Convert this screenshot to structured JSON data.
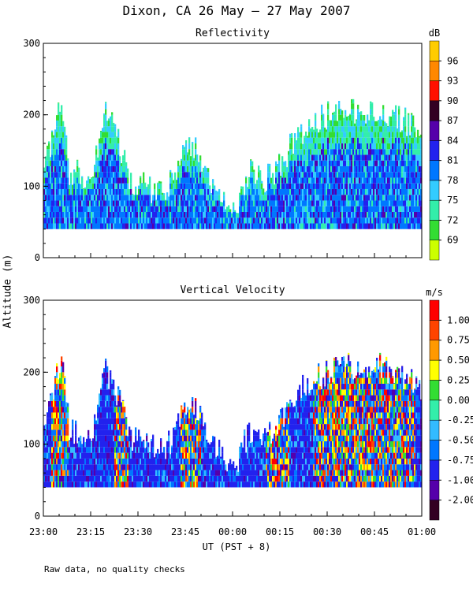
{
  "title": "Dixon, CA 26 May — 27 May 2007",
  "ylabel": "Altitude (m)",
  "xlabel": "UT  (PST + 8)",
  "footnote": "Raw data, no quality checks",
  "chart_data": [
    {
      "type": "heatmap",
      "title": "Reflectivity",
      "colorbar_unit": "dB",
      "colorbar_ticks": [
        "69",
        "72",
        "75",
        "78",
        "81",
        "84",
        "87",
        "90",
        "93",
        "96"
      ],
      "colorbar_colors": [
        "#ccff00",
        "#33dd33",
        "#33eeaa",
        "#33ccff",
        "#0077ff",
        "#2222ee",
        "#5500aa",
        "#330022",
        "#ff1100",
        "#ff8800",
        "#ffcc00"
      ],
      "x_ticks": [
        "23:00",
        "23:15",
        "23:30",
        "23:45",
        "00:00",
        "00:15",
        "00:30",
        "00:45",
        "01:00"
      ],
      "y_ticks": [
        "0",
        "100",
        "200",
        "300"
      ],
      "ylim": [
        0,
        300
      ],
      "xlim_minutes": [
        0,
        120
      ],
      "data_base_altitude": 40,
      "profiles": [
        {
          "t": 0,
          "top": 120
        },
        {
          "t": 2,
          "top": 160
        },
        {
          "t": 4,
          "top": 200
        },
        {
          "t": 5.5,
          "top": 215
        },
        {
          "t": 8,
          "top": 120
        },
        {
          "t": 11,
          "top": 120
        },
        {
          "t": 15,
          "top": 110
        },
        {
          "t": 19,
          "top": 210
        },
        {
          "t": 22,
          "top": 180
        },
        {
          "t": 24,
          "top": 160
        },
        {
          "t": 27,
          "top": 110
        },
        {
          "t": 32,
          "top": 100
        },
        {
          "t": 37,
          "top": 90
        },
        {
          "t": 41,
          "top": 110
        },
        {
          "t": 45,
          "top": 160
        },
        {
          "t": 49,
          "top": 150
        },
        {
          "t": 53,
          "top": 100
        },
        {
          "t": 57,
          "top": 80
        },
        {
          "t": 60,
          "top": 60
        },
        {
          "t": 65,
          "top": 120
        },
        {
          "t": 70,
          "top": 110
        },
        {
          "t": 75,
          "top": 130
        },
        {
          "t": 80,
          "top": 170
        },
        {
          "t": 85,
          "top": 190
        },
        {
          "t": 90,
          "top": 200
        },
        {
          "t": 95,
          "top": 210
        },
        {
          "t": 100,
          "top": 200
        },
        {
          "t": 105,
          "top": 210
        },
        {
          "t": 110,
          "top": 200
        },
        {
          "t": 115,
          "top": 190
        },
        {
          "t": 120,
          "top": 180
        }
      ]
    },
    {
      "type": "heatmap",
      "title": "Vertical Velocity",
      "colorbar_unit": "m/s",
      "colorbar_ticks": [
        "-2.00",
        "-1.00",
        "-0.75",
        "-0.50",
        "-0.25",
        "0.00",
        "0.25",
        "0.50",
        "0.75",
        "1.00"
      ],
      "colorbar_colors": [
        "#330022",
        "#5500aa",
        "#2222ee",
        "#0077ff",
        "#33bbff",
        "#33eeaa",
        "#33dd33",
        "#ffff00",
        "#ff9900",
        "#ff4400",
        "#ff0000"
      ],
      "x_ticks": [
        "23:00",
        "23:15",
        "23:30",
        "23:45",
        "00:00",
        "00:15",
        "00:30",
        "00:45",
        "01:00"
      ],
      "y_ticks": [
        "0",
        "100",
        "200",
        "300"
      ],
      "ylim": [
        0,
        300
      ],
      "xlim_minutes": [
        0,
        120
      ],
      "data_base_altitude": 40,
      "profiles": [
        {
          "t": 0,
          "top": 120
        },
        {
          "t": 2,
          "top": 160
        },
        {
          "t": 4,
          "top": 200
        },
        {
          "t": 5.5,
          "top": 215
        },
        {
          "t": 8,
          "top": 120
        },
        {
          "t": 11,
          "top": 120
        },
        {
          "t": 15,
          "top": 110
        },
        {
          "t": 19,
          "top": 210
        },
        {
          "t": 22,
          "top": 180
        },
        {
          "t": 24,
          "top": 160
        },
        {
          "t": 27,
          "top": 110
        },
        {
          "t": 32,
          "top": 100
        },
        {
          "t": 37,
          "top": 90
        },
        {
          "t": 41,
          "top": 110
        },
        {
          "t": 45,
          "top": 160
        },
        {
          "t": 49,
          "top": 150
        },
        {
          "t": 53,
          "top": 100
        },
        {
          "t": 57,
          "top": 80
        },
        {
          "t": 60,
          "top": 60
        },
        {
          "t": 65,
          "top": 120
        },
        {
          "t": 70,
          "top": 110
        },
        {
          "t": 75,
          "top": 130
        },
        {
          "t": 80,
          "top": 170
        },
        {
          "t": 85,
          "top": 190
        },
        {
          "t": 90,
          "top": 200
        },
        {
          "t": 95,
          "top": 210
        },
        {
          "t": 100,
          "top": 200
        },
        {
          "t": 105,
          "top": 210
        },
        {
          "t": 110,
          "top": 200
        },
        {
          "t": 115,
          "top": 190
        },
        {
          "t": 120,
          "top": 180
        }
      ]
    }
  ]
}
